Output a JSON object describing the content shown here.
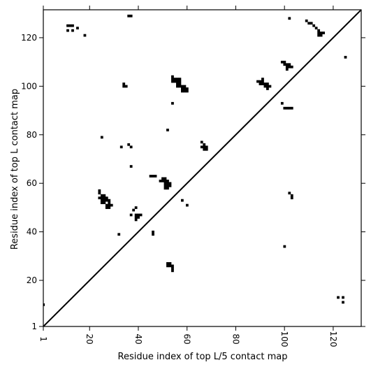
{
  "chart_data": {
    "type": "scatter",
    "title": "",
    "xlabel": "Residue index of top L/5 contact map",
    "ylabel": "Residue index of top L contact map",
    "xlim": [
      1,
      131.5
    ],
    "ylim": [
      1,
      131.5
    ],
    "x_ticks": [
      1,
      20,
      40,
      60,
      80,
      100,
      120
    ],
    "y_ticks": [
      1,
      20,
      40,
      60,
      80,
      100,
      120
    ],
    "grid": false,
    "legend": "none",
    "diagonal": true,
    "colors": {
      "points": "#000000",
      "axes": "#000000",
      "background": "#ffffff"
    },
    "series": [
      {
        "label": "below-diagonal",
        "points": [
          [
            1,
            10
          ],
          [
            52,
            27
          ],
          [
            53,
            27
          ],
          [
            52,
            26
          ],
          [
            53,
            26
          ],
          [
            54,
            26
          ],
          [
            54,
            25
          ],
          [
            54,
            24
          ],
          [
            122,
            13
          ],
          [
            124,
            13
          ],
          [
            124,
            11
          ],
          [
            100,
            34
          ],
          [
            103,
            55
          ],
          [
            102,
            56
          ],
          [
            103,
            54
          ],
          [
            46,
            40
          ],
          [
            46,
            39
          ],
          [
            32,
            39
          ]
        ]
      },
      {
        "label": "above-diagonal",
        "points": [
          [
            11,
            125
          ],
          [
            12,
            125
          ],
          [
            13,
            125
          ],
          [
            11,
            123
          ],
          [
            13,
            123
          ],
          [
            15,
            124
          ],
          [
            18,
            121
          ],
          [
            36,
            129
          ],
          [
            37,
            129
          ],
          [
            102,
            128
          ],
          [
            125,
            112
          ],
          [
            109,
            127
          ],
          [
            110,
            126
          ],
          [
            111,
            126
          ],
          [
            112,
            125
          ],
          [
            113,
            124
          ],
          [
            114,
            123
          ],
          [
            114,
            122
          ],
          [
            115,
            122
          ],
          [
            116,
            122
          ],
          [
            115,
            121
          ],
          [
            114,
            121
          ],
          [
            34,
            101
          ],
          [
            34,
            100
          ],
          [
            35,
            100
          ],
          [
            54,
            104
          ],
          [
            54,
            103
          ],
          [
            55,
            103
          ],
          [
            56,
            103
          ],
          [
            57,
            103
          ],
          [
            54,
            102
          ],
          [
            55,
            102
          ],
          [
            56,
            102
          ],
          [
            57,
            102
          ],
          [
            56,
            101
          ],
          [
            57,
            101
          ],
          [
            56,
            100
          ],
          [
            57,
            100
          ],
          [
            58,
            100
          ],
          [
            59,
            100
          ],
          [
            58,
            99
          ],
          [
            59,
            99
          ],
          [
            60,
            99
          ],
          [
            58,
            98
          ],
          [
            59,
            98
          ],
          [
            60,
            98
          ],
          [
            54,
            93
          ],
          [
            91,
            103
          ],
          [
            89,
            102
          ],
          [
            90,
            102
          ],
          [
            91,
            102
          ],
          [
            92,
            101
          ],
          [
            90,
            101
          ],
          [
            91,
            101
          ],
          [
            93,
            101
          ],
          [
            92,
            100
          ],
          [
            93,
            100
          ],
          [
            94,
            100
          ],
          [
            93,
            99
          ],
          [
            99,
            110
          ],
          [
            100,
            110
          ],
          [
            100,
            109
          ],
          [
            101,
            109
          ],
          [
            102,
            109
          ],
          [
            101,
            108
          ],
          [
            102,
            108
          ],
          [
            103,
            108
          ],
          [
            101,
            107
          ],
          [
            99,
            93
          ],
          [
            100,
            91
          ],
          [
            101,
            91
          ],
          [
            102,
            91
          ],
          [
            103,
            91
          ],
          [
            52,
            82
          ],
          [
            25,
            79
          ],
          [
            66,
            77
          ],
          [
            67,
            76
          ],
          [
            66,
            75
          ],
          [
            67,
            75
          ],
          [
            68,
            75
          ],
          [
            67,
            74
          ],
          [
            68,
            74
          ],
          [
            33,
            75
          ],
          [
            36,
            76
          ],
          [
            37,
            75
          ],
          [
            37,
            67
          ],
          [
            45,
            63
          ],
          [
            46,
            63
          ],
          [
            47,
            63
          ],
          [
            50,
            62
          ],
          [
            51,
            62
          ],
          [
            49,
            61
          ],
          [
            50,
            61
          ],
          [
            51,
            61
          ],
          [
            52,
            61
          ],
          [
            51,
            60
          ],
          [
            52,
            60
          ],
          [
            53,
            60
          ],
          [
            53,
            59
          ],
          [
            51,
            59
          ],
          [
            52,
            59
          ],
          [
            51,
            58
          ],
          [
            52,
            58
          ],
          [
            24,
            57
          ],
          [
            24,
            56
          ],
          [
            25,
            55
          ],
          [
            26,
            55
          ],
          [
            24,
            54
          ],
          [
            25,
            54
          ],
          [
            26,
            54
          ],
          [
            27,
            54
          ],
          [
            25,
            53
          ],
          [
            26,
            53
          ],
          [
            27,
            53
          ],
          [
            28,
            53
          ],
          [
            25,
            52
          ],
          [
            26,
            52
          ],
          [
            28,
            52
          ],
          [
            27,
            51
          ],
          [
            28,
            51
          ],
          [
            29,
            51
          ],
          [
            27,
            50
          ],
          [
            28,
            50
          ],
          [
            39,
            50
          ],
          [
            38,
            49
          ],
          [
            58,
            53
          ],
          [
            60,
            51
          ],
          [
            37,
            47
          ],
          [
            39,
            47
          ],
          [
            40,
            47
          ],
          [
            41,
            47
          ],
          [
            39,
            46
          ],
          [
            40,
            46
          ],
          [
            39,
            45
          ]
        ]
      }
    ]
  }
}
